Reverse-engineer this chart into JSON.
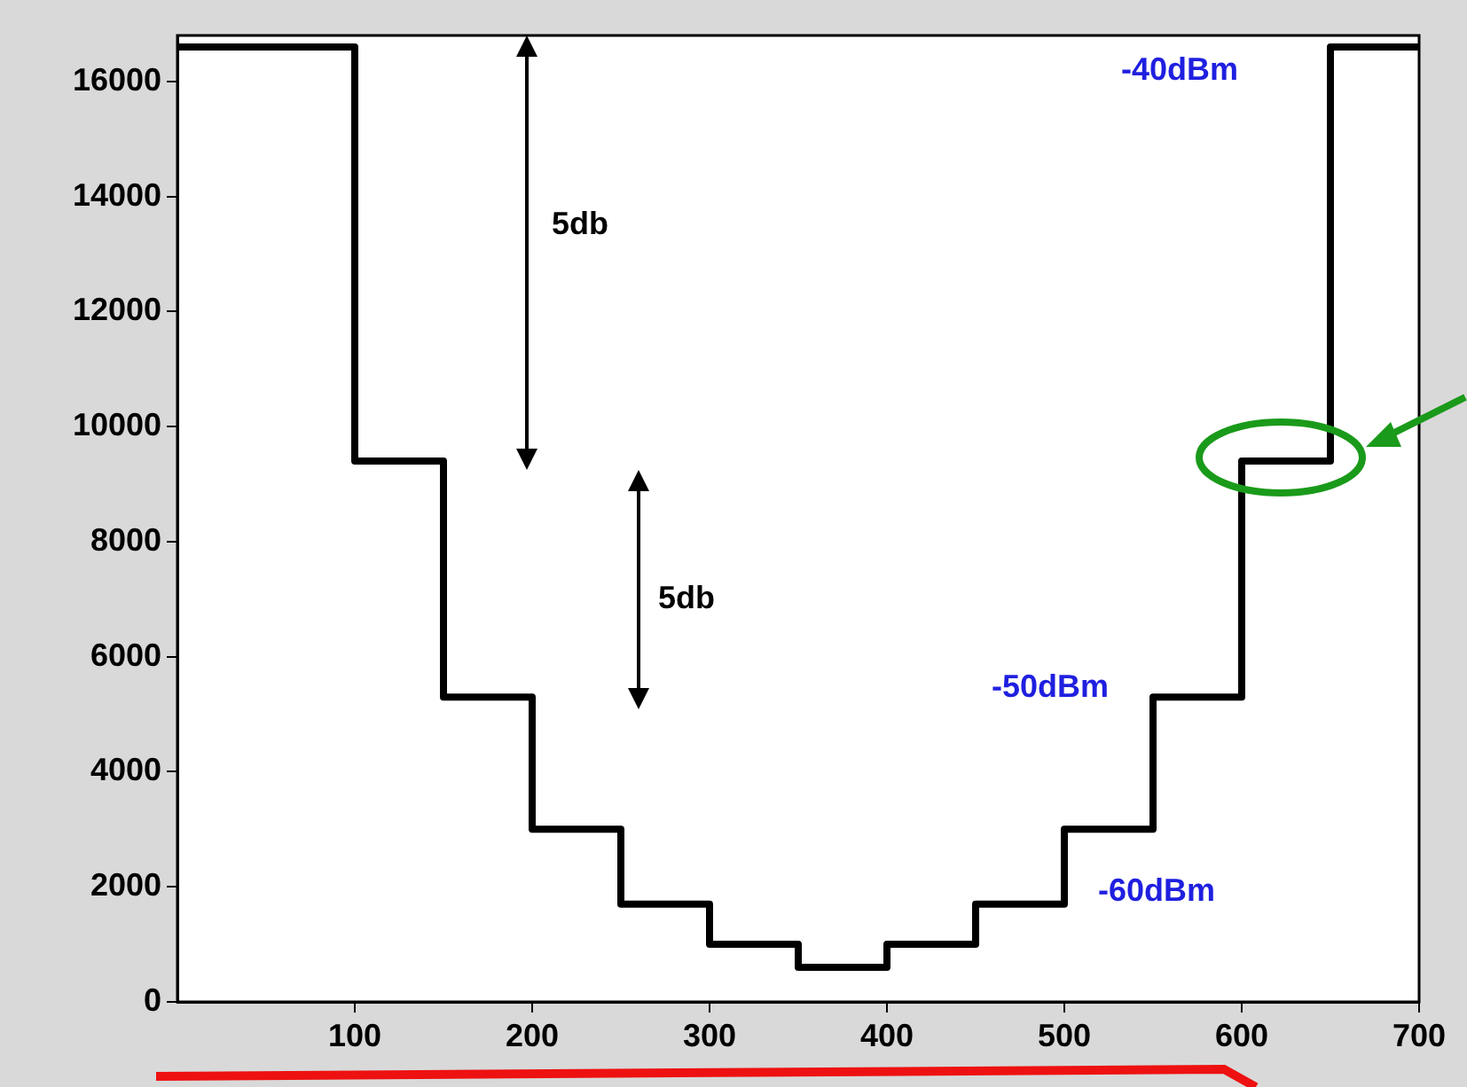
{
  "chart_data": {
    "type": "step",
    "x": [
      0,
      100,
      150,
      200,
      250,
      300,
      350,
      400,
      450,
      500,
      550,
      600,
      650,
      700
    ],
    "series": [
      {
        "color": "#000000",
        "values": [
          16600,
          9400,
          5300,
          3000,
          1700,
          1000,
          600,
          1000,
          1700,
          3000,
          5300,
          9400,
          16600,
          16600
        ]
      }
    ],
    "xlim": [
      0,
      700
    ],
    "xticks": [
      100,
      200,
      300,
      400,
      500,
      600,
      700
    ],
    "ylim": [
      0,
      16800
    ],
    "yticks": [
      0,
      2000,
      4000,
      6000,
      8000,
      10000,
      12000,
      14000,
      16000
    ],
    "marker": "none",
    "line_style": "solid",
    "legend": false,
    "annotations": [
      "5db",
      "5db",
      "-40dBm",
      "-50dBm",
      "-60dBm"
    ]
  }
}
